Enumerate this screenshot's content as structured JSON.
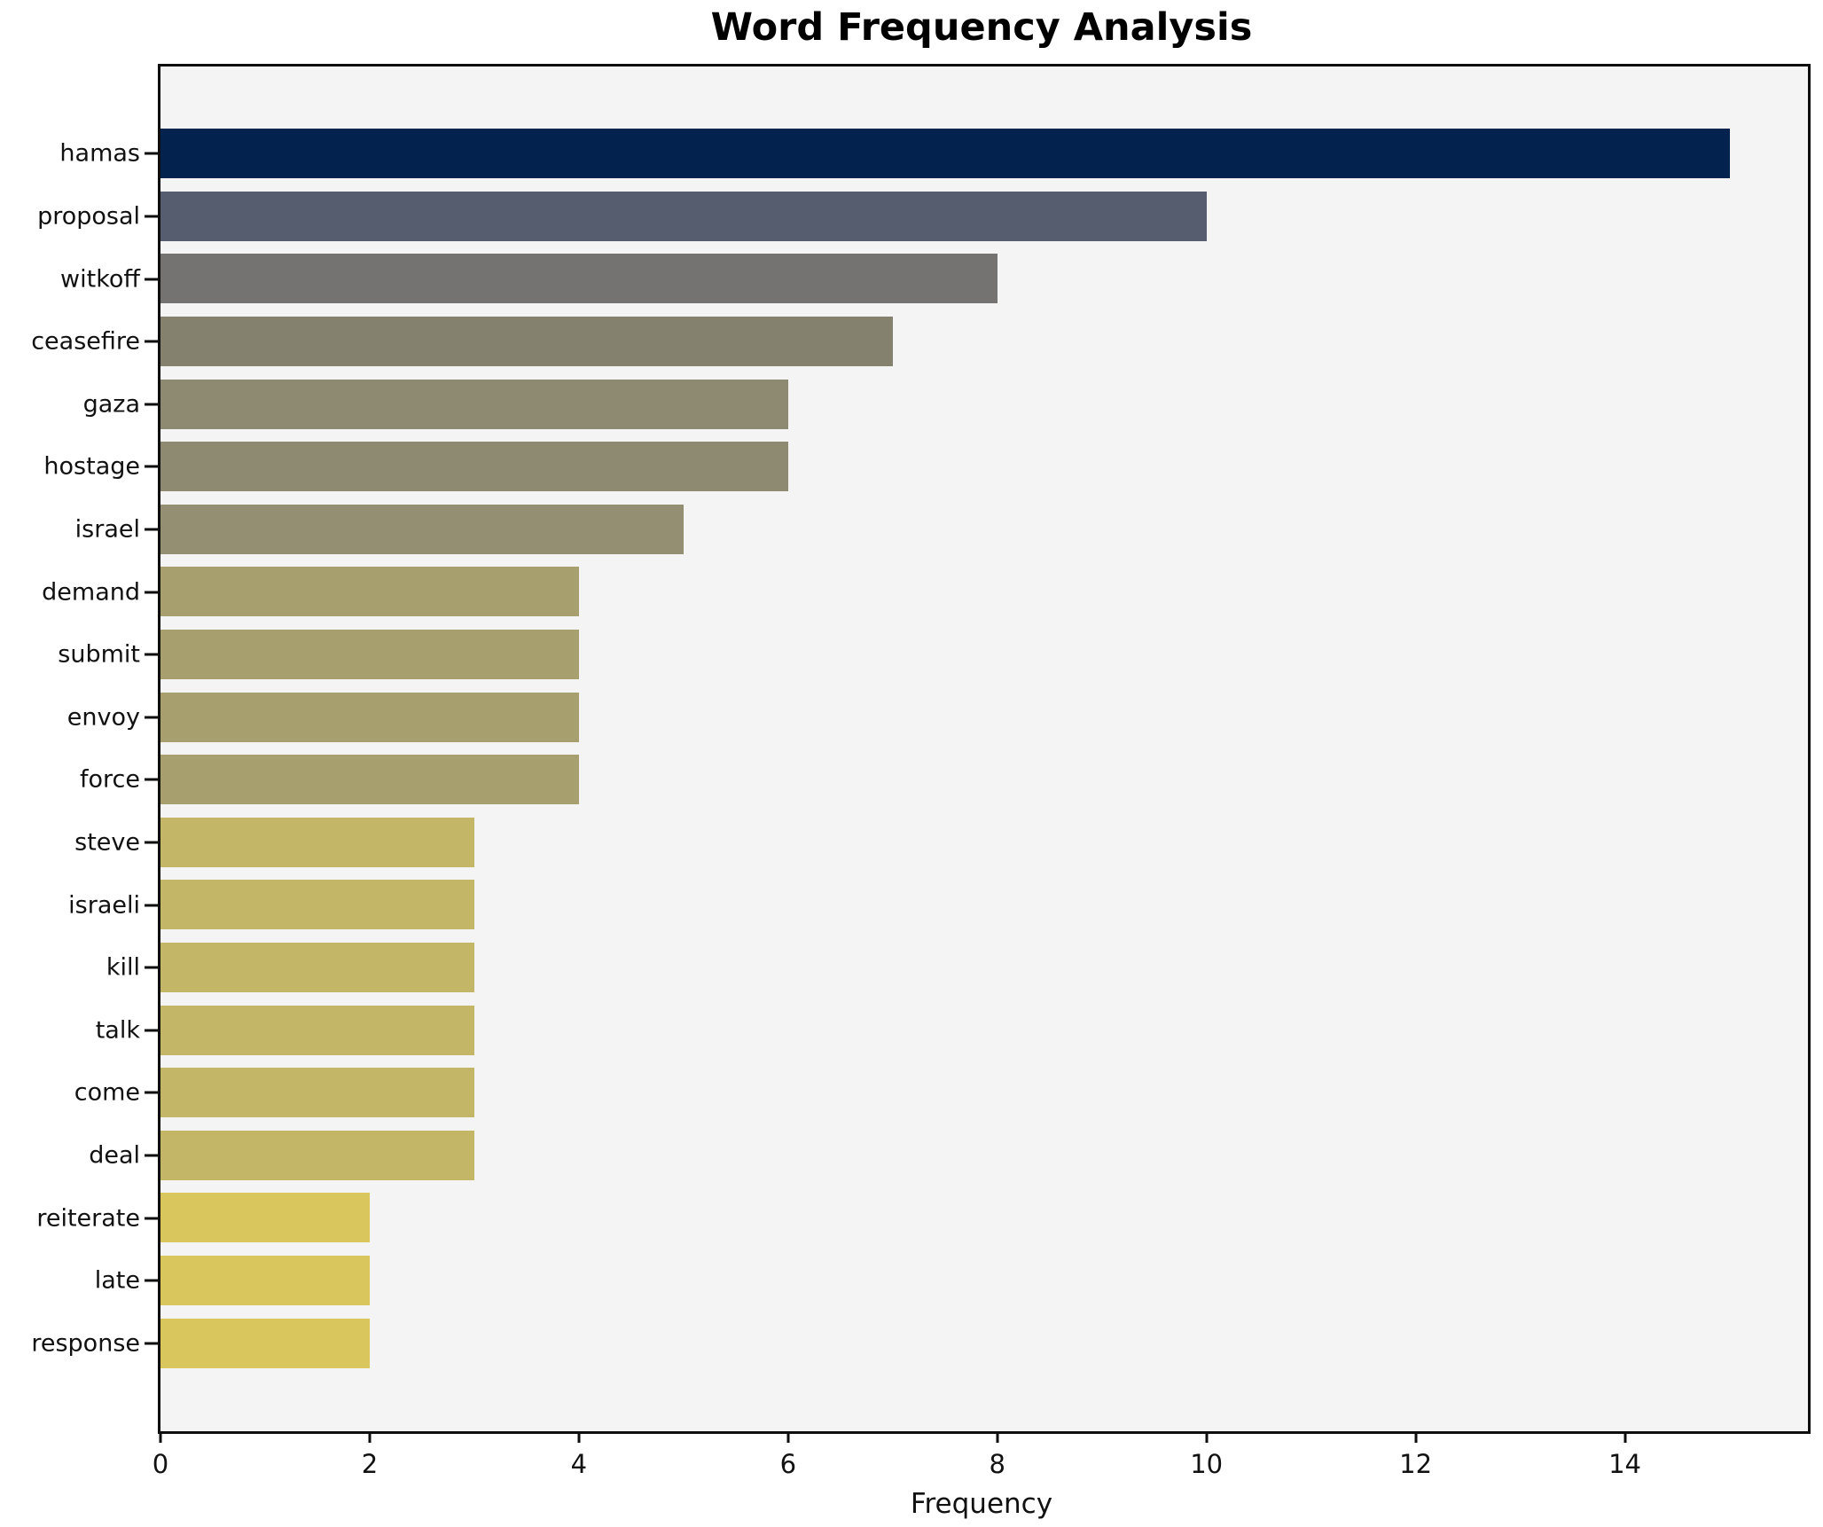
{
  "chart_data": {
    "type": "bar",
    "orientation": "horizontal",
    "title": "Word Frequency Analysis",
    "xlabel": "Frequency",
    "ylabel": "",
    "categories": [
      "hamas",
      "proposal",
      "witkoff",
      "ceasefire",
      "gaza",
      "hostage",
      "israel",
      "demand",
      "submit",
      "envoy",
      "force",
      "steve",
      "israeli",
      "kill",
      "talk",
      "come",
      "deal",
      "reiterate",
      "late",
      "response"
    ],
    "values": [
      15,
      10,
      8,
      7,
      6,
      6,
      5,
      4,
      4,
      4,
      4,
      3,
      3,
      3,
      3,
      3,
      3,
      2,
      2,
      2
    ],
    "bar_colors": [
      "#03224e",
      "#565d6e",
      "#747372",
      "#84816f",
      "#8e8971",
      "#8e8971",
      "#948e73",
      "#a89f6f",
      "#a89f6f",
      "#a89f6f",
      "#a89f6f",
      "#c3b666",
      "#c3b666",
      "#c3b666",
      "#c3b666",
      "#c3b666",
      "#c3b666",
      "#d9c65c",
      "#d9c65c",
      "#d9c65c"
    ],
    "xticks": [
      0,
      2,
      4,
      6,
      8,
      10,
      12,
      14
    ],
    "xlim": [
      0,
      15.75
    ],
    "grid": false,
    "legend": "none",
    "plot_background": "#f5f4f5",
    "figure_background": "#ffffff",
    "spine_color": "#0e0e0e"
  }
}
